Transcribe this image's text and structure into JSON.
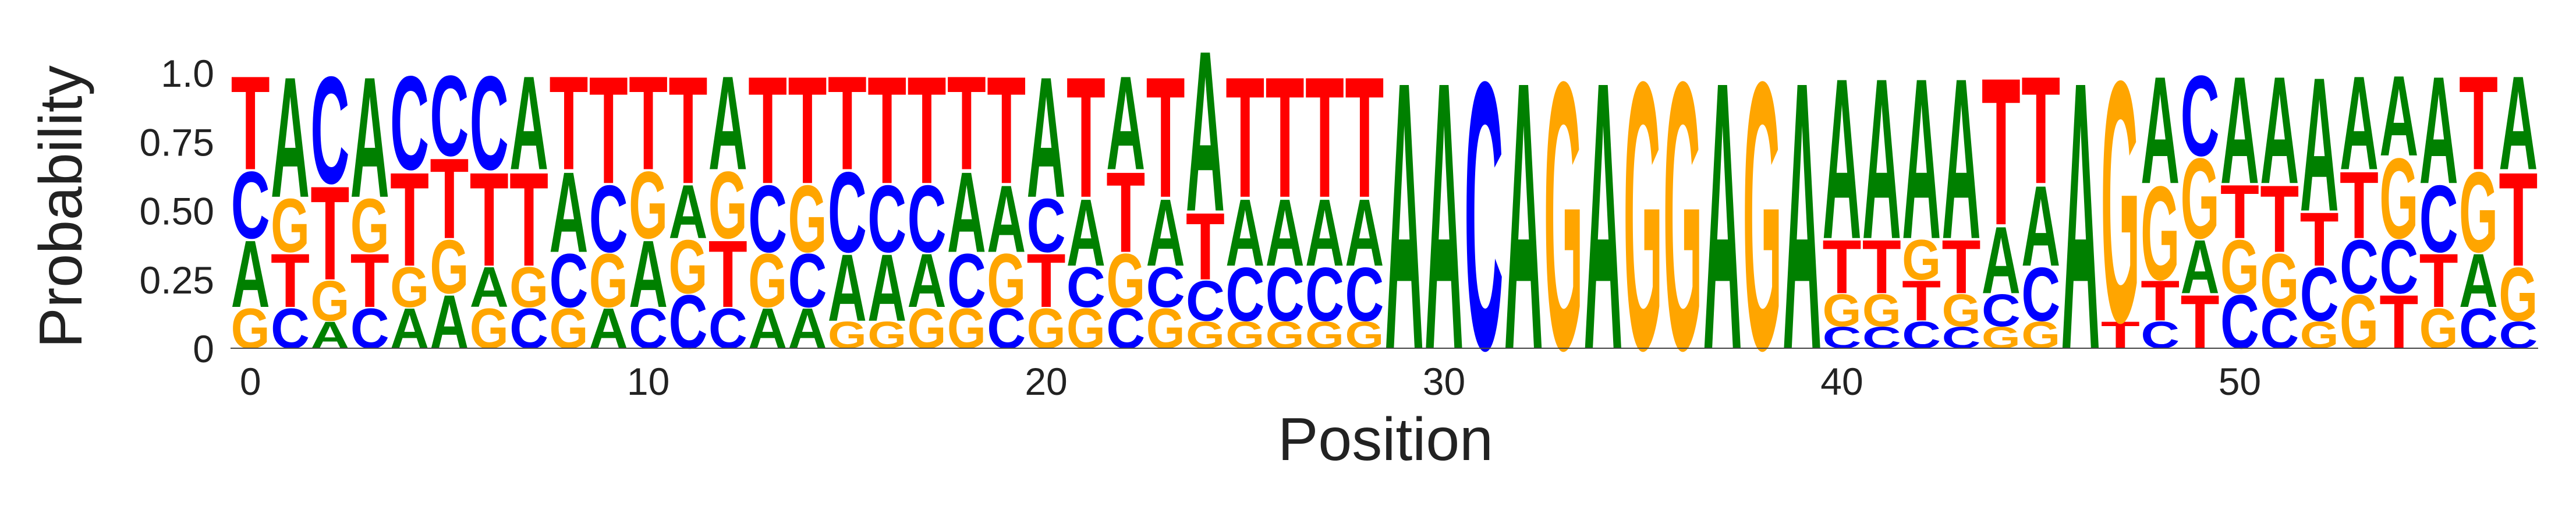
{
  "colors": {
    "A": "#008000",
    "C": "#0000ff",
    "G": "#ffa500",
    "T": "#ff0000"
  },
  "chart_data": {
    "type": "sequence-logo",
    "xlabel": "Position",
    "ylabel": "Probability",
    "ylim": [
      0,
      1
    ],
    "y_ticks": [
      "0",
      "0.25",
      "0.50",
      "0.75",
      "1.0"
    ],
    "x_ticks": [
      "0",
      "10",
      "20",
      "30",
      "40",
      "50"
    ],
    "x_tick_values": [
      0,
      10,
      20,
      30,
      40,
      50
    ],
    "positions": [
      {
        "T": 0.35,
        "A": 0.25,
        "C": 0.25,
        "G": 0.15
      },
      {
        "T": 0.2,
        "A": 0.45,
        "G": 0.2,
        "C": 0.15
      },
      {
        "T": 0.35,
        "C": 0.4,
        "A": 0.1,
        "G": 0.15
      },
      {
        "T": 0.2,
        "A": 0.45,
        "G": 0.2,
        "C": 0.15
      },
      {
        "T": 0.35,
        "A": 0.15,
        "G": 0.15,
        "C": 0.35
      },
      {
        "T": 0.3,
        "C": 0.3,
        "A": 0.2,
        "G": 0.2
      },
      {
        "T": 0.35,
        "C": 0.35,
        "G": 0.15,
        "A": 0.15
      },
      {
        "T": 0.35,
        "A": 0.35,
        "C": 0.15,
        "G": 0.15
      },
      {
        "T": 0.35,
        "A": 0.3,
        "C": 0.2,
        "G": 0.15
      },
      {
        "T": 0.4,
        "C": 0.25,
        "G": 0.2,
        "A": 0.15
      },
      {
        "T": 0.35,
        "A": 0.25,
        "G": 0.25,
        "C": 0.15
      },
      {
        "T": 0.4,
        "C": 0.2,
        "G": 0.2,
        "A": 0.2
      },
      {
        "T": 0.25,
        "A": 0.35,
        "G": 0.25,
        "C": 0.15
      },
      {
        "T": 0.4,
        "C": 0.25,
        "G": 0.2,
        "A": 0.15
      },
      {
        "T": 0.4,
        "G": 0.25,
        "C": 0.2,
        "A": 0.15
      },
      {
        "C": 0.3,
        "T": 0.35,
        "A": 0.25,
        "G": 0.1
      },
      {
        "T": 0.4,
        "A": 0.25,
        "C": 0.25,
        "G": 0.1
      },
      {
        "T": 0.4,
        "C": 0.25,
        "A": 0.2,
        "G": 0.15
      },
      {
        "T": 0.35,
        "A": 0.3,
        "C": 0.2,
        "G": 0.15
      },
      {
        "T": 0.4,
        "A": 0.25,
        "G": 0.2,
        "C": 0.15
      },
      {
        "T": 0.2,
        "A": 0.45,
        "C": 0.2,
        "G": 0.15
      },
      {
        "T": 0.45,
        "A": 0.25,
        "G": 0.15,
        "C": 0.15
      },
      {
        "T": 0.3,
        "A": 0.35,
        "G": 0.2,
        "C": 0.15
      },
      {
        "T": 0.45,
        "A": 0.25,
        "G": 0.15,
        "C": 0.15
      },
      {
        "A": 0.6,
        "T": 0.25,
        "C": 0.15,
        "G": 0.1
      },
      {
        "T": 0.45,
        "A": 0.25,
        "C": 0.2,
        "G": 0.1
      },
      {
        "T": 0.45,
        "A": 0.25,
        "C": 0.2,
        "G": 0.1
      },
      {
        "T": 0.45,
        "A": 0.25,
        "C": 0.2,
        "G": 0.1
      },
      {
        "T": 0.45,
        "A": 0.25,
        "C": 0.2,
        "G": 0.1
      },
      {
        "A": 1.0
      },
      {
        "A": 1.0
      },
      {
        "C": 1.0
      },
      {
        "A": 1.0
      },
      {
        "G": 1.0
      },
      {
        "A": 1.0
      },
      {
        "G": 1.0
      },
      {
        "G": 1.0
      },
      {
        "A": 1.0
      },
      {
        "G": 1.0
      },
      {
        "A": 1.0
      },
      {
        "A": 0.6,
        "T": 0.2,
        "G": 0.12,
        "C": 0.08
      },
      {
        "A": 0.6,
        "T": 0.2,
        "G": 0.12,
        "C": 0.08
      },
      {
        "A": 0.6,
        "T": 0.15,
        "G": 0.15,
        "C": 0.1
      },
      {
        "A": 0.6,
        "T": 0.2,
        "G": 0.12,
        "C": 0.08
      },
      {
        "T": 0.55,
        "A": 0.25,
        "C": 0.12,
        "G": 0.08
      },
      {
        "T": 0.4,
        "A": 0.3,
        "C": 0.2,
        "G": 0.1
      },
      {
        "A": 1.0
      },
      {
        "T": 0.1,
        "G": 0.9
      },
      {
        "T": 0.15,
        "A": 0.4,
        "G": 0.35,
        "C": 0.1
      },
      {
        "T": 0.2,
        "A": 0.2,
        "G": 0.3,
        "C": 0.3
      },
      {
        "A": 0.4,
        "C": 0.2,
        "G": 0.2,
        "T": 0.2
      },
      {
        "A": 0.4,
        "G": 0.2,
        "T": 0.25,
        "C": 0.15
      },
      {
        "A": 0.5,
        "C": 0.2,
        "T": 0.2,
        "G": 0.1
      },
      {
        "A": 0.35,
        "T": 0.25,
        "G": 0.2,
        "C": 0.2
      },
      {
        "G": 0.3,
        "A": 0.3,
        "T": 0.2,
        "C": 0.2
      },
      {
        "A": 0.4,
        "C": 0.25,
        "T": 0.2,
        "G": 0.15
      },
      {
        "T": 0.35,
        "G": 0.3,
        "A": 0.2,
        "C": 0.15
      },
      {
        "T": 0.35,
        "A": 0.35,
        "G": 0.2,
        "C": 0.1
      }
    ]
  }
}
